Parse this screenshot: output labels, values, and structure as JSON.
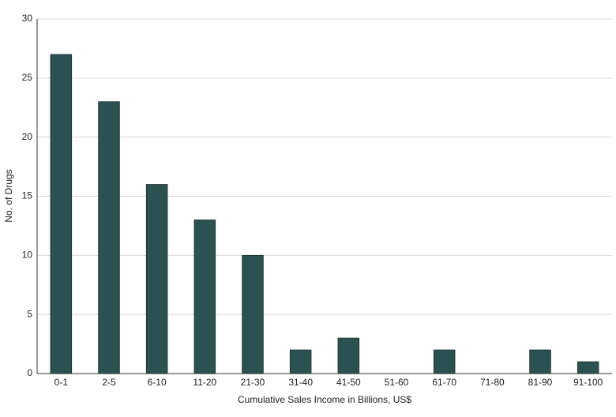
{
  "chart_data": {
    "type": "bar",
    "x_label": "Cumulative Sales Income in Billions, US$",
    "y_label": "No. of Drugs",
    "categories": [
      "0-1",
      "2-5",
      "6-10",
      "11-20",
      "21-30",
      "31-40",
      "41-50",
      "51-60",
      "61-70",
      "71-80",
      "81-90",
      "91-100"
    ],
    "values": [
      27,
      23,
      16,
      13,
      10,
      2,
      3,
      0,
      2,
      0,
      2,
      1
    ],
    "color": "#2b5150",
    "ylim": [
      0,
      30
    ],
    "yticks": [
      0,
      5,
      10,
      15,
      20,
      25,
      30
    ],
    "grid": true
  }
}
